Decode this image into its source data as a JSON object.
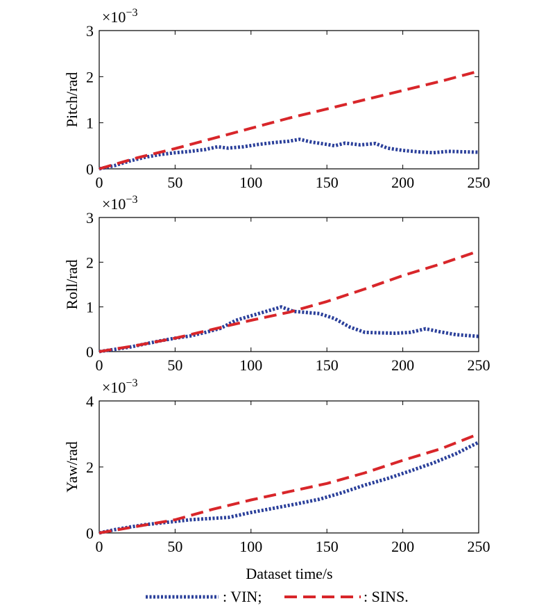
{
  "colors": {
    "vin": "#2a3f9a",
    "sins": "#d8262a"
  },
  "legend": {
    "vin_label": ": VIN;",
    "sins_label": ": SINS."
  },
  "xlabel": "Dataset time/s",
  "chart_data": [
    {
      "type": "line",
      "ylabel": "Pitch/rad",
      "scale_label": "×10",
      "scale_exp": "−3",
      "xlim": [
        0,
        250
      ],
      "ylim": [
        0,
        3
      ],
      "xticks": [
        0,
        50,
        100,
        150,
        200,
        250
      ],
      "yticks": [
        0,
        1,
        2,
        3
      ],
      "series": [
        {
          "name": "VIN",
          "x": [
            0,
            10,
            20,
            30,
            40,
            50,
            60,
            70,
            78,
            85,
            95,
            105,
            115,
            125,
            132,
            140,
            150,
            155,
            162,
            172,
            182,
            190,
            200,
            210,
            220,
            230,
            240,
            250
          ],
          "y": [
            0,
            0.07,
            0.17,
            0.25,
            0.31,
            0.35,
            0.38,
            0.42,
            0.48,
            0.45,
            0.48,
            0.53,
            0.57,
            0.6,
            0.64,
            0.58,
            0.53,
            0.5,
            0.56,
            0.52,
            0.55,
            0.45,
            0.4,
            0.37,
            0.35,
            0.38,
            0.37,
            0.36
          ]
        },
        {
          "name": "SINS",
          "x": [
            0,
            25,
            50,
            75,
            100,
            125,
            150,
            175,
            200,
            225,
            250
          ],
          "y": [
            0,
            0.24,
            0.44,
            0.66,
            0.88,
            1.1,
            1.3,
            1.5,
            1.7,
            1.9,
            2.12
          ]
        }
      ]
    },
    {
      "type": "line",
      "ylabel": "Roll/rad",
      "scale_label": "×10",
      "scale_exp": "−3",
      "xlim": [
        0,
        250
      ],
      "ylim": [
        0,
        3
      ],
      "xticks": [
        0,
        50,
        100,
        150,
        200,
        250
      ],
      "yticks": [
        0,
        1,
        2,
        3
      ],
      "series": [
        {
          "name": "VIN",
          "x": [
            0,
            10,
            20,
            30,
            40,
            50,
            60,
            70,
            80,
            90,
            100,
            110,
            120,
            128,
            135,
            145,
            155,
            165,
            175,
            185,
            195,
            205,
            215,
            225,
            235,
            250
          ],
          "y": [
            0,
            0.05,
            0.1,
            0.17,
            0.24,
            0.3,
            0.35,
            0.43,
            0.52,
            0.7,
            0.8,
            0.9,
            1.0,
            0.9,
            0.88,
            0.85,
            0.74,
            0.55,
            0.43,
            0.42,
            0.41,
            0.43,
            0.51,
            0.44,
            0.38,
            0.34
          ]
        },
        {
          "name": "SINS",
          "x": [
            0,
            25,
            50,
            75,
            100,
            125,
            150,
            175,
            200,
            225,
            250
          ],
          "y": [
            0,
            0.14,
            0.3,
            0.5,
            0.7,
            0.88,
            1.12,
            1.4,
            1.7,
            1.96,
            2.25
          ]
        }
      ]
    },
    {
      "type": "line",
      "ylabel": "Yaw/rad",
      "scale_label": "×10",
      "scale_exp": "−3",
      "xlim": [
        0,
        250
      ],
      "ylim": [
        0,
        4
      ],
      "xticks": [
        0,
        50,
        100,
        150,
        200,
        250
      ],
      "yticks": [
        0,
        2,
        4
      ],
      "series": [
        {
          "name": "VIN",
          "x": [
            0,
            10,
            20,
            30,
            40,
            50,
            60,
            70,
            85,
            100,
            115,
            130,
            145,
            160,
            175,
            190,
            205,
            220,
            235,
            250
          ],
          "y": [
            0,
            0.1,
            0.18,
            0.25,
            0.3,
            0.35,
            0.4,
            0.43,
            0.47,
            0.62,
            0.75,
            0.88,
            1.02,
            1.22,
            1.45,
            1.65,
            1.88,
            2.12,
            2.4,
            2.75
          ]
        },
        {
          "name": "SINS",
          "x": [
            0,
            25,
            50,
            75,
            100,
            125,
            150,
            175,
            200,
            225,
            250
          ],
          "y": [
            0,
            0.2,
            0.4,
            0.72,
            1.0,
            1.25,
            1.5,
            1.82,
            2.2,
            2.55,
            3.0
          ]
        }
      ]
    }
  ]
}
